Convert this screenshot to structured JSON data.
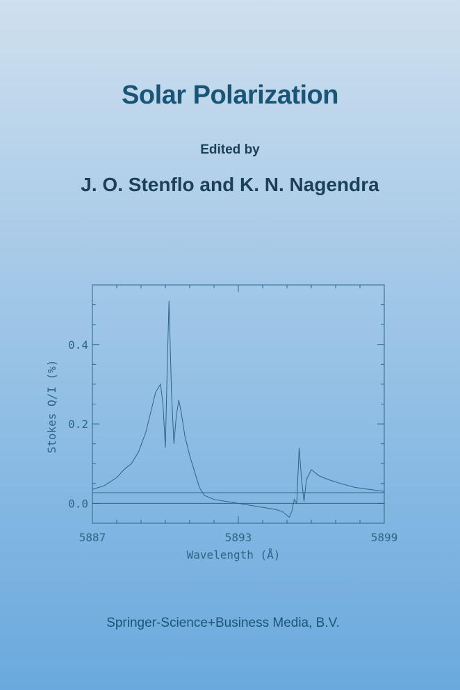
{
  "cover": {
    "title": "Solar Polarization",
    "edited_by": "Edited by",
    "authors": "J. O. Stenflo and K. N. Nagendra",
    "publisher": "Springer-Science+Business Media, B.V."
  },
  "colors": {
    "line": "#2c6585",
    "text": "#2c6585"
  },
  "chart_data": {
    "type": "line",
    "xlabel": "Wavelength (Å)",
    "ylabel": "Stokes Q/I (%)",
    "xlim": [
      5887,
      5899
    ],
    "ylim": [
      -0.05,
      0.55
    ],
    "x_ticks": [
      "5887",
      "5893",
      "5899"
    ],
    "y_ticks": [
      "0.0",
      "0.2",
      "0.4"
    ],
    "reference_lines": [
      0.0,
      0.027
    ],
    "series": [
      {
        "x": [
          5887.0,
          5887.5,
          5888.0,
          5888.3,
          5888.6,
          5888.9,
          5889.2,
          5889.4,
          5889.6,
          5889.8,
          5889.9,
          5890.0,
          5890.08,
          5890.15,
          5890.25,
          5890.35,
          5890.45,
          5890.55,
          5890.65,
          5890.8,
          5891.0,
          5891.2,
          5891.4,
          5891.6,
          5891.8,
          5892.0,
          5892.5,
          5893.0,
          5893.5,
          5894.0,
          5894.5,
          5894.8,
          5895.0,
          5895.1,
          5895.2,
          5895.3,
          5895.4,
          5895.5,
          5895.6,
          5895.7,
          5895.8,
          5896.0,
          5896.3,
          5896.7,
          5897.2,
          5897.8,
          5898.4,
          5899.0
        ],
        "y": [
          0.035,
          0.045,
          0.065,
          0.085,
          0.1,
          0.13,
          0.18,
          0.23,
          0.28,
          0.3,
          0.25,
          0.14,
          0.35,
          0.51,
          0.28,
          0.15,
          0.22,
          0.26,
          0.23,
          0.17,
          0.12,
          0.08,
          0.04,
          0.02,
          0.015,
          0.01,
          0.005,
          0.0,
          -0.005,
          -0.01,
          -0.015,
          -0.02,
          -0.03,
          -0.035,
          -0.02,
          0.01,
          0.0,
          0.14,
          0.06,
          0.005,
          0.06,
          0.085,
          0.07,
          0.06,
          0.05,
          0.04,
          0.035,
          0.03
        ]
      }
    ]
  }
}
